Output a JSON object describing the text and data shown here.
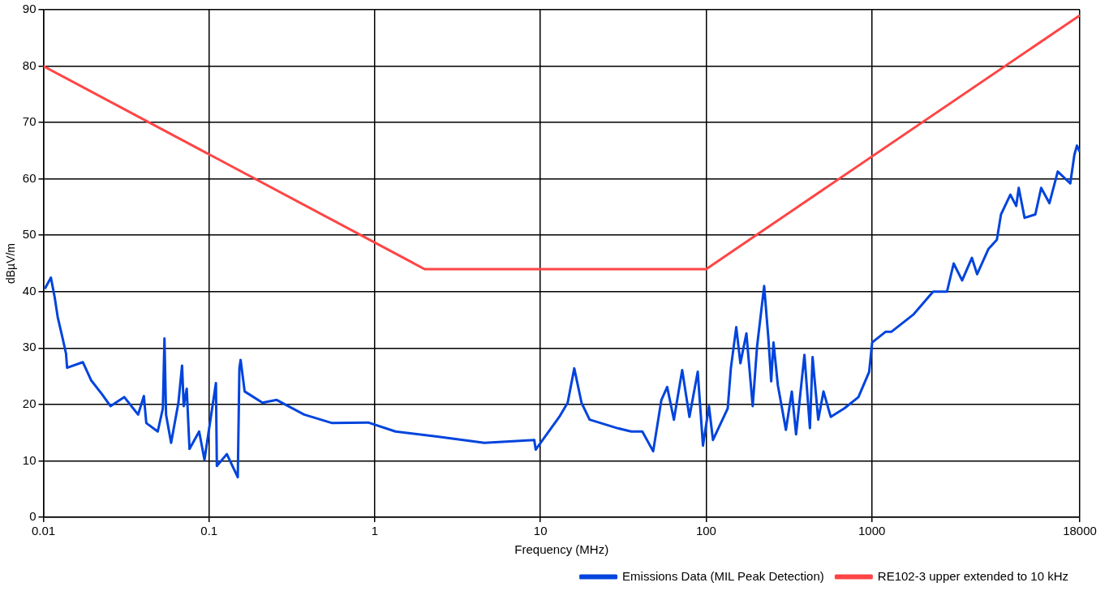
{
  "chart_data": {
    "type": "line",
    "xlabel": "Frequency (MHz)",
    "ylabel": "dBµV/m",
    "log": "x",
    "grid": true,
    "legend": "bottom right",
    "marker": "none",
    "line_style": "solid",
    "xlim": [
      0.01,
      18000
    ],
    "xticks": [
      0.01,
      0.1,
      1,
      10,
      100,
      1000,
      18000
    ],
    "ylim": [
      0,
      90
    ],
    "yticks": [
      0,
      10,
      20,
      30,
      40,
      50,
      60,
      70,
      80,
      90
    ],
    "series": [
      {
        "name": "Emissions Data (MIL Peak Detection)",
        "color": "#0044dd",
        "x": [
          0.0102,
          0.0111,
          0.0117,
          0.0122,
          0.013,
          0.0137,
          0.0139,
          0.0173,
          0.0194,
          0.0226,
          0.0254,
          0.0308,
          0.0373,
          0.0404,
          0.0418,
          0.049,
          0.0526,
          0.0538,
          0.055,
          0.059,
          0.0653,
          0.0687,
          0.0703,
          0.0733,
          0.0762,
          0.0871,
          0.0938,
          0.11,
          0.1114,
          0.128,
          0.149,
          0.1524,
          0.155,
          0.164,
          0.21,
          0.256,
          0.375,
          0.553,
          0.912,
          1.334,
          2.38,
          4.59,
          9.18,
          9.36,
          13.0,
          14.6,
          16.0,
          17.7,
          19.8,
          29.1,
          35.3,
          41.2,
          47.9,
          53.7,
          58.2,
          63.9,
          71.7,
          79.3,
          89,
          95.7,
          104,
          110,
          135,
          141,
          152,
          161,
          175,
          191,
          203,
          224,
          238,
          247,
          255,
          271,
          303,
          329,
          349,
          392,
          423,
          439,
          475,
          511,
          565,
          682,
          830,
          964,
          1005,
          1213,
          1315,
          1791,
          2344,
          2843,
          3119,
          3508,
          4017,
          4323,
          5062,
          5684,
          6020,
          6858,
          7441,
          7705,
          8356,
          9704,
          10520,
          11800,
          13250,
          15770,
          16700,
          17300,
          18000
        ],
        "values": [
          40.5,
          42.5,
          39,
          35.5,
          32,
          29,
          26.5,
          27.5,
          24.3,
          21.8,
          19.7,
          21.3,
          18.2,
          21.5,
          16.7,
          15.2,
          19.3,
          31.7,
          18.2,
          13.2,
          20.3,
          26.9,
          19.7,
          22.8,
          12.1,
          15.2,
          10.2,
          23.8,
          9.1,
          11.2,
          7.1,
          26.4,
          27.9,
          22.3,
          20.3,
          20.8,
          18.2,
          16.7,
          16.8,
          15.2,
          14.3,
          13.2,
          13.7,
          12,
          17.8,
          20.3,
          26.4,
          20.3,
          17.3,
          15.8,
          15.2,
          15.2,
          11.7,
          20.8,
          23.1,
          17.3,
          26.1,
          17.8,
          25.8,
          12.7,
          19.7,
          13.7,
          19.3,
          26.4,
          33.7,
          27.3,
          32.6,
          19.7,
          30.3,
          41,
          31.4,
          24.1,
          31,
          23.4,
          15.5,
          22.3,
          14.7,
          28.8,
          15.8,
          28.4,
          17.3,
          22.3,
          17.8,
          19.3,
          21.3,
          25.8,
          31,
          32.9,
          32.9,
          36,
          40,
          40,
          45,
          42,
          46,
          43.1,
          47.6,
          49.2,
          53.7,
          57.2,
          55.2,
          58.4,
          53.1,
          53.7,
          58.4,
          55.7,
          61.3,
          59.2,
          64.3,
          65.9,
          64.8
        ]
      },
      {
        "name": "RE102-3 upper extended to 10 kHz",
        "color": "#ff4444",
        "x": [
          0.01,
          2,
          100,
          18000
        ],
        "values": [
          80,
          44,
          44,
          89
        ]
      }
    ]
  }
}
